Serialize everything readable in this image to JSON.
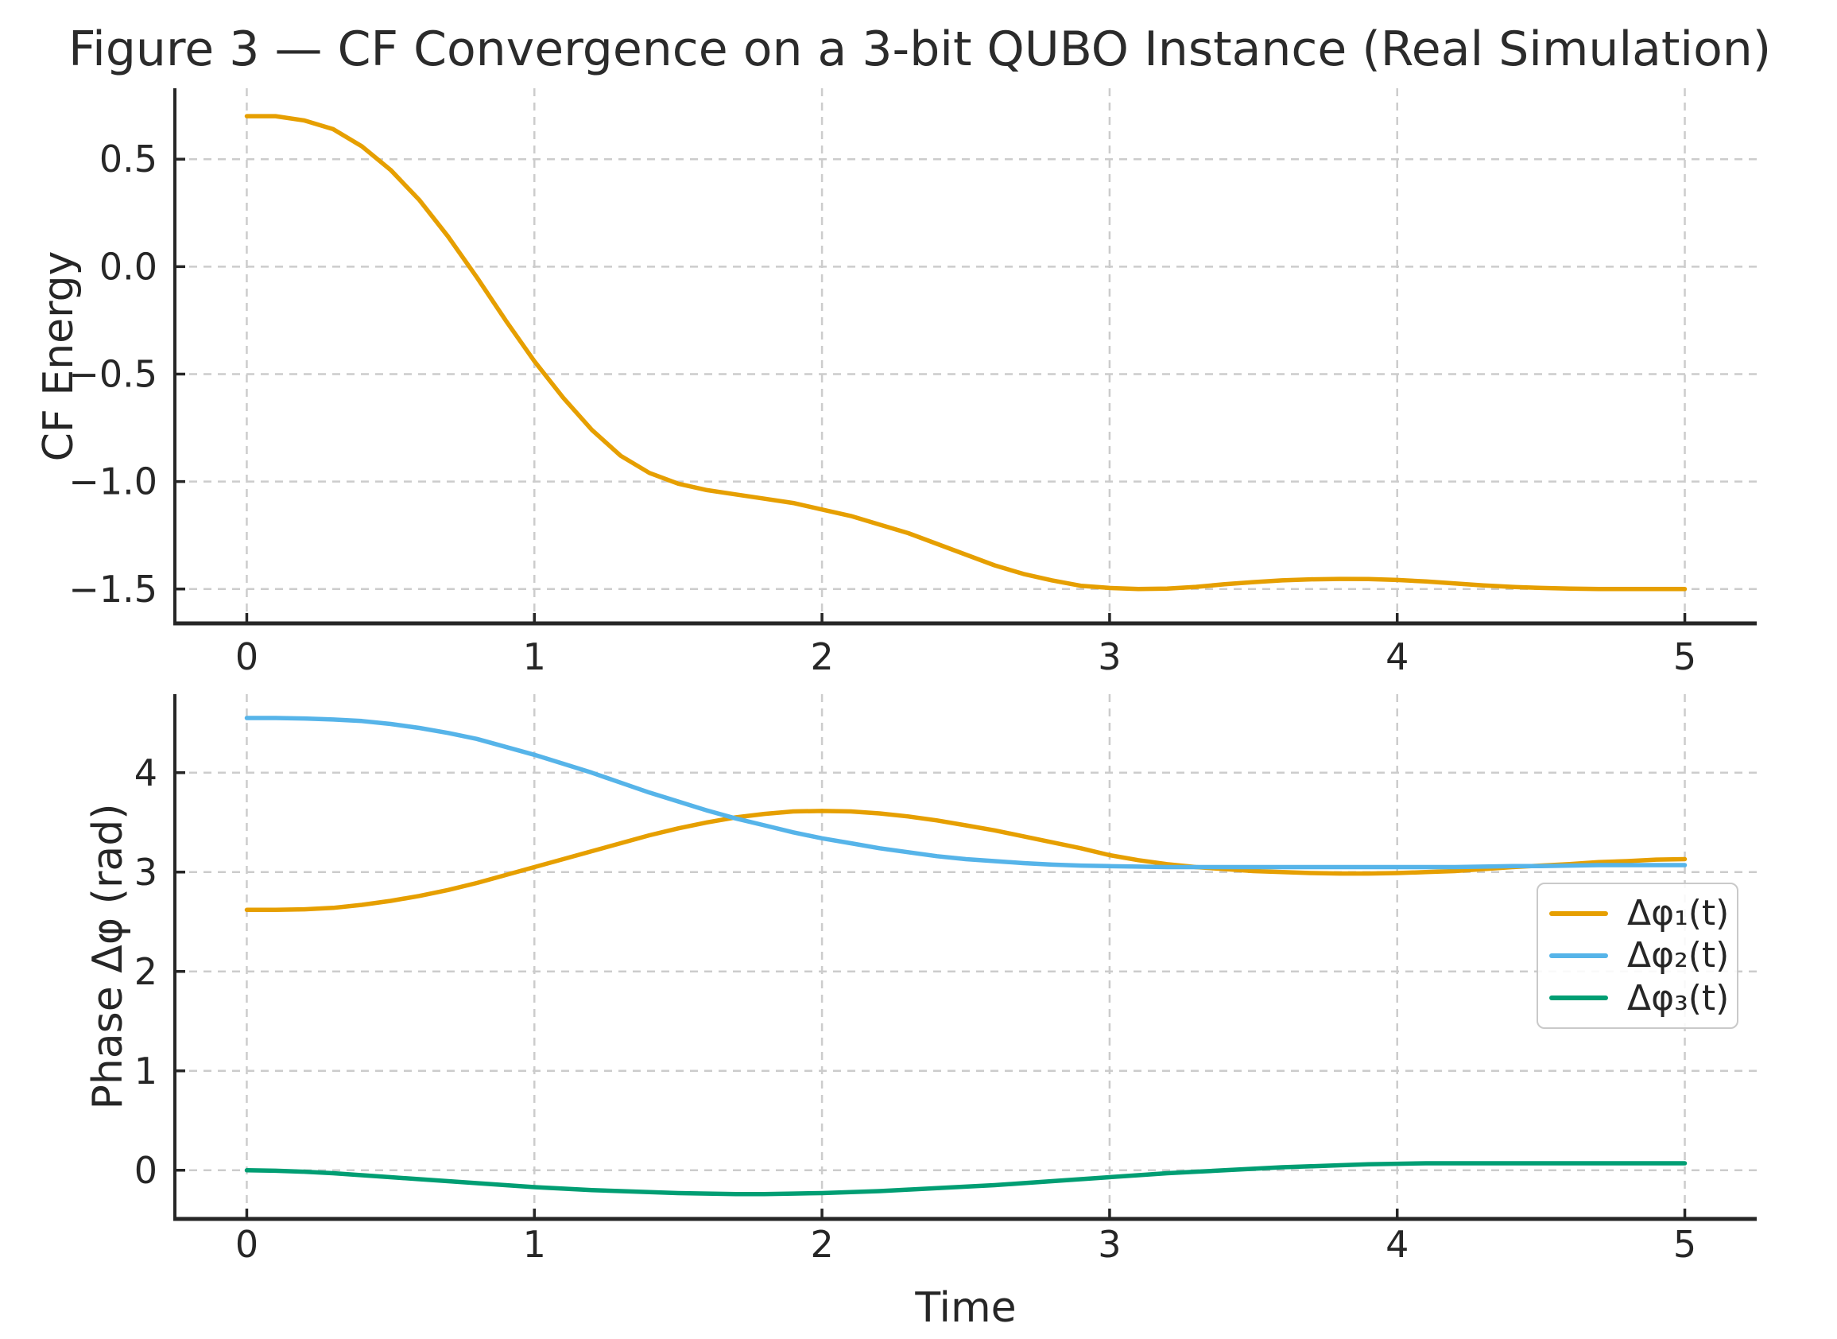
{
  "title": "Figure 3 — CF Convergence on a 3-bit QUBO Instance (Real Simulation)",
  "colors": {
    "orange": "#E69F00",
    "blue": "#56B4E9",
    "green": "#009E73",
    "grid": "#cccccc",
    "spine": "#262626",
    "text": "#262626",
    "legend_border": "#c9c9c9"
  },
  "chart_data": [
    {
      "type": "line",
      "ylabel": "CF Energy",
      "xlabel": "",
      "xlim": [
        -0.25,
        5.25
      ],
      "ylim": [
        -1.66,
        0.83
      ],
      "grid": true,
      "xticks": {
        "values": [
          0,
          1,
          2,
          3,
          4,
          5
        ],
        "labels": [
          "0",
          "1",
          "2",
          "3",
          "4",
          "5"
        ]
      },
      "yticks": {
        "values": [
          0.5,
          0.0,
          -0.5,
          -1.0,
          -1.5
        ],
        "labels": [
          "0.5",
          "0.0",
          "−0.5",
          "−1.0",
          "−1.5"
        ]
      },
      "x": [
        0,
        0.1,
        0.2,
        0.3,
        0.4,
        0.5,
        0.6,
        0.7,
        0.8,
        0.9,
        1,
        1.1,
        1.2,
        1.3,
        1.4,
        1.5,
        1.6,
        1.7,
        1.8,
        1.9,
        2,
        2.1,
        2.2,
        2.3,
        2.4,
        2.5,
        2.6,
        2.7,
        2.8,
        2.9,
        3,
        3.1,
        3.2,
        3.3,
        3.4,
        3.5,
        3.6,
        3.7,
        3.8,
        3.9,
        4,
        4.1,
        4.2,
        4.3,
        4.4,
        4.5,
        4.6,
        4.7,
        4.8,
        4.9,
        5
      ],
      "series": [
        {
          "name": "CF Energy",
          "color": "#E69F00",
          "values": [
            0.7,
            0.7,
            0.68,
            0.64,
            0.56,
            0.45,
            0.31,
            0.14,
            -0.05,
            -0.25,
            -0.44,
            -0.61,
            -0.76,
            -0.88,
            -0.96,
            -1.01,
            -1.04,
            -1.06,
            -1.08,
            -1.1,
            -1.13,
            -1.16,
            -1.2,
            -1.24,
            -1.29,
            -1.34,
            -1.39,
            -1.43,
            -1.46,
            -1.485,
            -1.495,
            -1.5,
            -1.498,
            -1.49,
            -1.478,
            -1.468,
            -1.46,
            -1.455,
            -1.453,
            -1.454,
            -1.458,
            -1.465,
            -1.474,
            -1.483,
            -1.49,
            -1.495,
            -1.498,
            -1.5,
            -1.5,
            -1.5,
            -1.5
          ]
        }
      ]
    },
    {
      "type": "line",
      "ylabel": "Phase Δφ (rad)",
      "xlabel": "Time",
      "xlim": [
        -0.25,
        5.25
      ],
      "ylim": [
        -0.49,
        4.79
      ],
      "grid": true,
      "legend_position": "center right",
      "xticks": {
        "values": [
          0,
          1,
          2,
          3,
          4,
          5
        ],
        "labels": [
          "0",
          "1",
          "2",
          "3",
          "4",
          "5"
        ]
      },
      "yticks": {
        "values": [
          0,
          1,
          2,
          3,
          4
        ],
        "labels": [
          "0",
          "1",
          "2",
          "3",
          "4"
        ]
      },
      "x": [
        0,
        0.1,
        0.2,
        0.3,
        0.4,
        0.5,
        0.6,
        0.7,
        0.8,
        0.9,
        1,
        1.1,
        1.2,
        1.3,
        1.4,
        1.5,
        1.6,
        1.7,
        1.8,
        1.9,
        2,
        2.1,
        2.2,
        2.3,
        2.4,
        2.5,
        2.6,
        2.7,
        2.8,
        2.9,
        3,
        3.1,
        3.2,
        3.3,
        3.4,
        3.5,
        3.6,
        3.7,
        3.8,
        3.9,
        4,
        4.1,
        4.2,
        4.3,
        4.4,
        4.5,
        4.6,
        4.7,
        4.8,
        4.9,
        5
      ],
      "series": [
        {
          "name": "Δφ₁(t)",
          "color": "#E69F00",
          "values": [
            2.62,
            2.62,
            2.625,
            2.64,
            2.67,
            2.71,
            2.76,
            2.82,
            2.89,
            2.97,
            3.05,
            3.13,
            3.21,
            3.29,
            3.37,
            3.44,
            3.5,
            3.55,
            3.585,
            3.61,
            3.615,
            3.61,
            3.59,
            3.56,
            3.52,
            3.47,
            3.42,
            3.36,
            3.3,
            3.24,
            3.17,
            3.12,
            3.08,
            3.05,
            3.03,
            3.01,
            3.0,
            2.99,
            2.985,
            2.985,
            2.99,
            3.0,
            3.01,
            3.03,
            3.05,
            3.065,
            3.08,
            3.1,
            3.11,
            3.125,
            3.13
          ]
        },
        {
          "name": "Δφ₂(t)",
          "color": "#56B4E9",
          "values": [
            4.55,
            4.55,
            4.545,
            4.535,
            4.52,
            4.49,
            4.45,
            4.4,
            4.34,
            4.26,
            4.18,
            4.09,
            4.0,
            3.9,
            3.8,
            3.71,
            3.62,
            3.54,
            3.47,
            3.4,
            3.34,
            3.29,
            3.24,
            3.2,
            3.16,
            3.13,
            3.11,
            3.09,
            3.075,
            3.065,
            3.06,
            3.055,
            3.05,
            3.05,
            3.05,
            3.05,
            3.05,
            3.05,
            3.05,
            3.05,
            3.05,
            3.05,
            3.05,
            3.055,
            3.06,
            3.06,
            3.065,
            3.07,
            3.07,
            3.07,
            3.07
          ]
        },
        {
          "name": "Δφ₃(t)",
          "color": "#009E73",
          "values": [
            0.0,
            -0.005,
            -0.015,
            -0.03,
            -0.05,
            -0.07,
            -0.09,
            -0.11,
            -0.13,
            -0.15,
            -0.17,
            -0.185,
            -0.2,
            -0.21,
            -0.22,
            -0.23,
            -0.235,
            -0.24,
            -0.24,
            -0.235,
            -0.23,
            -0.22,
            -0.21,
            -0.195,
            -0.18,
            -0.165,
            -0.15,
            -0.13,
            -0.11,
            -0.09,
            -0.07,
            -0.05,
            -0.03,
            -0.015,
            0.0,
            0.015,
            0.03,
            0.04,
            0.05,
            0.06,
            0.065,
            0.07,
            0.07,
            0.07,
            0.07,
            0.07,
            0.07,
            0.07,
            0.07,
            0.07,
            0.07
          ]
        }
      ],
      "legend": {
        "entries": [
          {
            "label": "Δφ₁(t)",
            "color": "#E69F00"
          },
          {
            "label": "Δφ₂(t)",
            "color": "#56B4E9"
          },
          {
            "label": "Δφ₃(t)",
            "color": "#009E73"
          }
        ]
      }
    }
  ]
}
